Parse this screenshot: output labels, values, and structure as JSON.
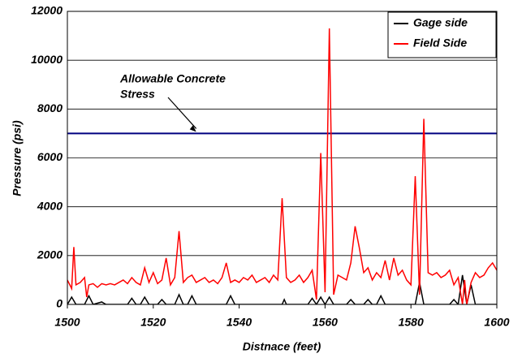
{
  "chart_data": {
    "type": "line",
    "xlabel": "Distnace  (feet)",
    "ylabel": "Pressure (psi)",
    "xlim": [
      1500,
      1600
    ],
    "xticks": [
      1500,
      1520,
      1540,
      1560,
      1580,
      1600
    ],
    "ylim": [
      0,
      12000
    ],
    "yticks": [
      0,
      2000,
      4000,
      6000,
      8000,
      10000,
      12000
    ],
    "grid": true,
    "legend": "upper right",
    "series": [
      {
        "name": "Gage side",
        "color": "#000000",
        "x": [
          1500,
          1501,
          1502,
          1504,
          1505,
          1506,
          1508,
          1509,
          1514,
          1515,
          1516,
          1517,
          1518,
          1519,
          1521,
          1522,
          1523,
          1525,
          1526,
          1527,
          1528,
          1529,
          1530,
          1537,
          1538,
          1539,
          1550,
          1550.5,
          1551,
          1556,
          1557,
          1558,
          1559,
          1560,
          1561,
          1562,
          1565,
          1566,
          1567,
          1569,
          1570,
          1571,
          1572,
          1573,
          1574,
          1581,
          1582,
          1583,
          1589,
          1590,
          1591,
          1592,
          1593,
          1594,
          1595,
          1600
        ],
        "values": [
          0,
          300,
          0,
          0,
          350,
          0,
          100,
          0,
          0,
          250,
          0,
          0,
          300,
          0,
          0,
          200,
          0,
          0,
          400,
          0,
          0,
          350,
          0,
          0,
          350,
          0,
          0,
          200,
          0,
          0,
          250,
          0,
          300,
          0,
          300,
          0,
          0,
          200,
          0,
          0,
          200,
          0,
          0,
          350,
          0,
          0,
          900,
          0,
          0,
          200,
          0,
          1200,
          0,
          800,
          0,
          0
        ]
      },
      {
        "name": "Field Side",
        "color": "#ff0000",
        "x": [
          1500,
          1501,
          1501.5,
          1502,
          1503,
          1504,
          1504.5,
          1505,
          1506,
          1507,
          1508,
          1509,
          1510,
          1511,
          1512,
          1513,
          1514,
          1515,
          1516,
          1517,
          1518,
          1519,
          1520,
          1521,
          1522,
          1523,
          1524,
          1525,
          1526,
          1527,
          1528,
          1529,
          1530,
          1531,
          1532,
          1533,
          1534,
          1535,
          1536,
          1537,
          1538,
          1539,
          1540,
          1541,
          1542,
          1543,
          1544,
          1545,
          1546,
          1547,
          1548,
          1549,
          1550,
          1551,
          1552,
          1553,
          1554,
          1555,
          1556,
          1557,
          1558,
          1559,
          1560,
          1561,
          1562,
          1563,
          1564,
          1565,
          1566,
          1567,
          1568,
          1569,
          1570,
          1571,
          1572,
          1573,
          1574,
          1575,
          1576,
          1577,
          1578,
          1579,
          1580,
          1581,
          1582,
          1583,
          1584,
          1585,
          1586,
          1587,
          1588,
          1589,
          1590,
          1591,
          1592,
          1592.5,
          1593,
          1594,
          1595,
          1596,
          1597,
          1598,
          1599,
          1600
        ],
        "values": [
          1000,
          650,
          2350,
          800,
          900,
          1100,
          300,
          800,
          850,
          700,
          850,
          800,
          850,
          800,
          900,
          1000,
          850,
          1100,
          900,
          800,
          1500,
          900,
          1300,
          850,
          1000,
          1900,
          800,
          1100,
          3000,
          900,
          1100,
          1200,
          900,
          1000,
          1100,
          900,
          1000,
          850,
          1100,
          1700,
          900,
          1000,
          900,
          1100,
          1000,
          1200,
          900,
          1000,
          1100,
          900,
          1200,
          1000,
          4350,
          1100,
          900,
          1000,
          1200,
          900,
          1100,
          1400,
          200,
          6200,
          500,
          11300,
          400,
          1200,
          1100,
          1000,
          1700,
          3200,
          2300,
          1300,
          1500,
          1000,
          1300,
          1100,
          1800,
          1000,
          1900,
          1200,
          1400,
          1000,
          800,
          5250,
          400,
          7600,
          1300,
          1200,
          1300,
          1100,
          1200,
          1400,
          800,
          1100,
          0,
          1000,
          0,
          900,
          1300,
          1100,
          1200,
          1500,
          1700,
          1400
        ]
      }
    ],
    "reference_lines": [
      {
        "value": 7000,
        "color": "#000080"
      }
    ],
    "annotation": {
      "lines": [
        "Allowable Concrete",
        "Stress"
      ],
      "x": 1530,
      "y": 7000
    }
  }
}
